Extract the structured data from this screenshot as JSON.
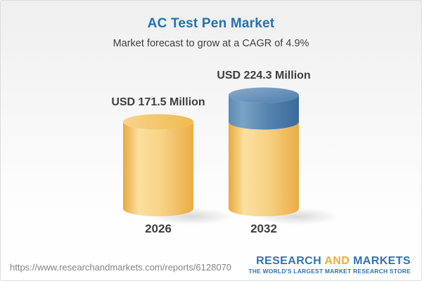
{
  "header": {
    "title": "AC Test Pen Market",
    "subtitle": "Market forecast to grow at a CAGR of 4.9%"
  },
  "chart_data": {
    "type": "bar",
    "style": "3d-cylinder",
    "title": "AC Test Pen Market",
    "subtitle": "Market forecast to grow at a CAGR of 4.9%",
    "cagr_pct": 4.9,
    "unit": "USD Million",
    "categories": [
      "2026",
      "2032"
    ],
    "values": [
      171.5,
      224.3
    ],
    "value_labels": [
      "USD 171.5 Million",
      "USD 224.3 Million"
    ],
    "series": [
      {
        "name": "base-value",
        "color_key": "gold",
        "values": [
          171.5,
          171.5
        ]
      },
      {
        "name": "forecast-growth",
        "color_key": "blue",
        "values": [
          0,
          52.8
        ]
      }
    ],
    "ylim": [
      0,
      240
    ],
    "grid": false,
    "legend": "none"
  },
  "colors": {
    "title": "#2173b4",
    "text": "#3f3f3f",
    "url_text": "#848484",
    "logo_blue": "#2e74b2",
    "logo_gold": "#f0ac3c",
    "gold_side": [
      "#e8a93e",
      "#fbe09f",
      "#f7d286",
      "#eaad44"
    ],
    "gold_top": [
      "#f8d38a",
      "#eebb52"
    ],
    "blue_side": [
      "#5d8cb4",
      "#7ba3c4",
      "#5585af",
      "#3a6b9c"
    ],
    "blue_top": [
      "#89abcc",
      "#4e7eaa"
    ],
    "shadow": "#828282"
  },
  "footer": {
    "url": "https://www.researchandmarkets.com/reports/6128070",
    "logo": {
      "parts": [
        "RESEARCH",
        "AND",
        "MARKETS"
      ],
      "tagline": "THE WORLD'S LARGEST MARKET RESEARCH STORE"
    }
  }
}
